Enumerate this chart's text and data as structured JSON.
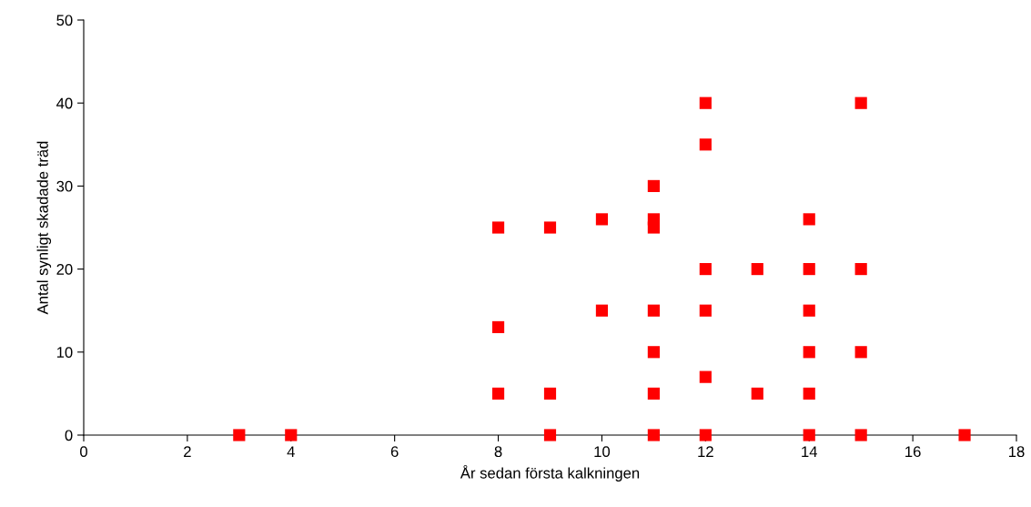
{
  "chart_data": {
    "type": "scatter",
    "xlabel": "År sedan första kalkningen",
    "ylabel": "Antal synligt skadade träd",
    "x": [
      3,
      4,
      8,
      8,
      8,
      9,
      9,
      9,
      10,
      10,
      11,
      11,
      11,
      11,
      11,
      11,
      11,
      12,
      12,
      12,
      12,
      12,
      12,
      13,
      13,
      14,
      14,
      14,
      14,
      14,
      14,
      15,
      15,
      15,
      15,
      17
    ],
    "values": [
      0,
      0,
      25,
      13,
      5,
      25,
      5,
      0,
      26,
      15,
      30,
      26,
      25,
      15,
      10,
      5,
      0,
      40,
      35,
      20,
      15,
      7,
      0,
      20,
      5,
      26,
      20,
      15,
      10,
      5,
      0,
      40,
      20,
      10,
      0,
      0
    ],
    "color": "#ff0000",
    "marker": "square",
    "xlim": [
      0,
      18
    ],
    "xticks": [
      0,
      2,
      4,
      6,
      8,
      10,
      12,
      14,
      16,
      18
    ],
    "ylim": [
      0,
      50
    ],
    "yticks": [
      0,
      10,
      20,
      30,
      40,
      50
    ],
    "grid": false,
    "legend": false
  }
}
